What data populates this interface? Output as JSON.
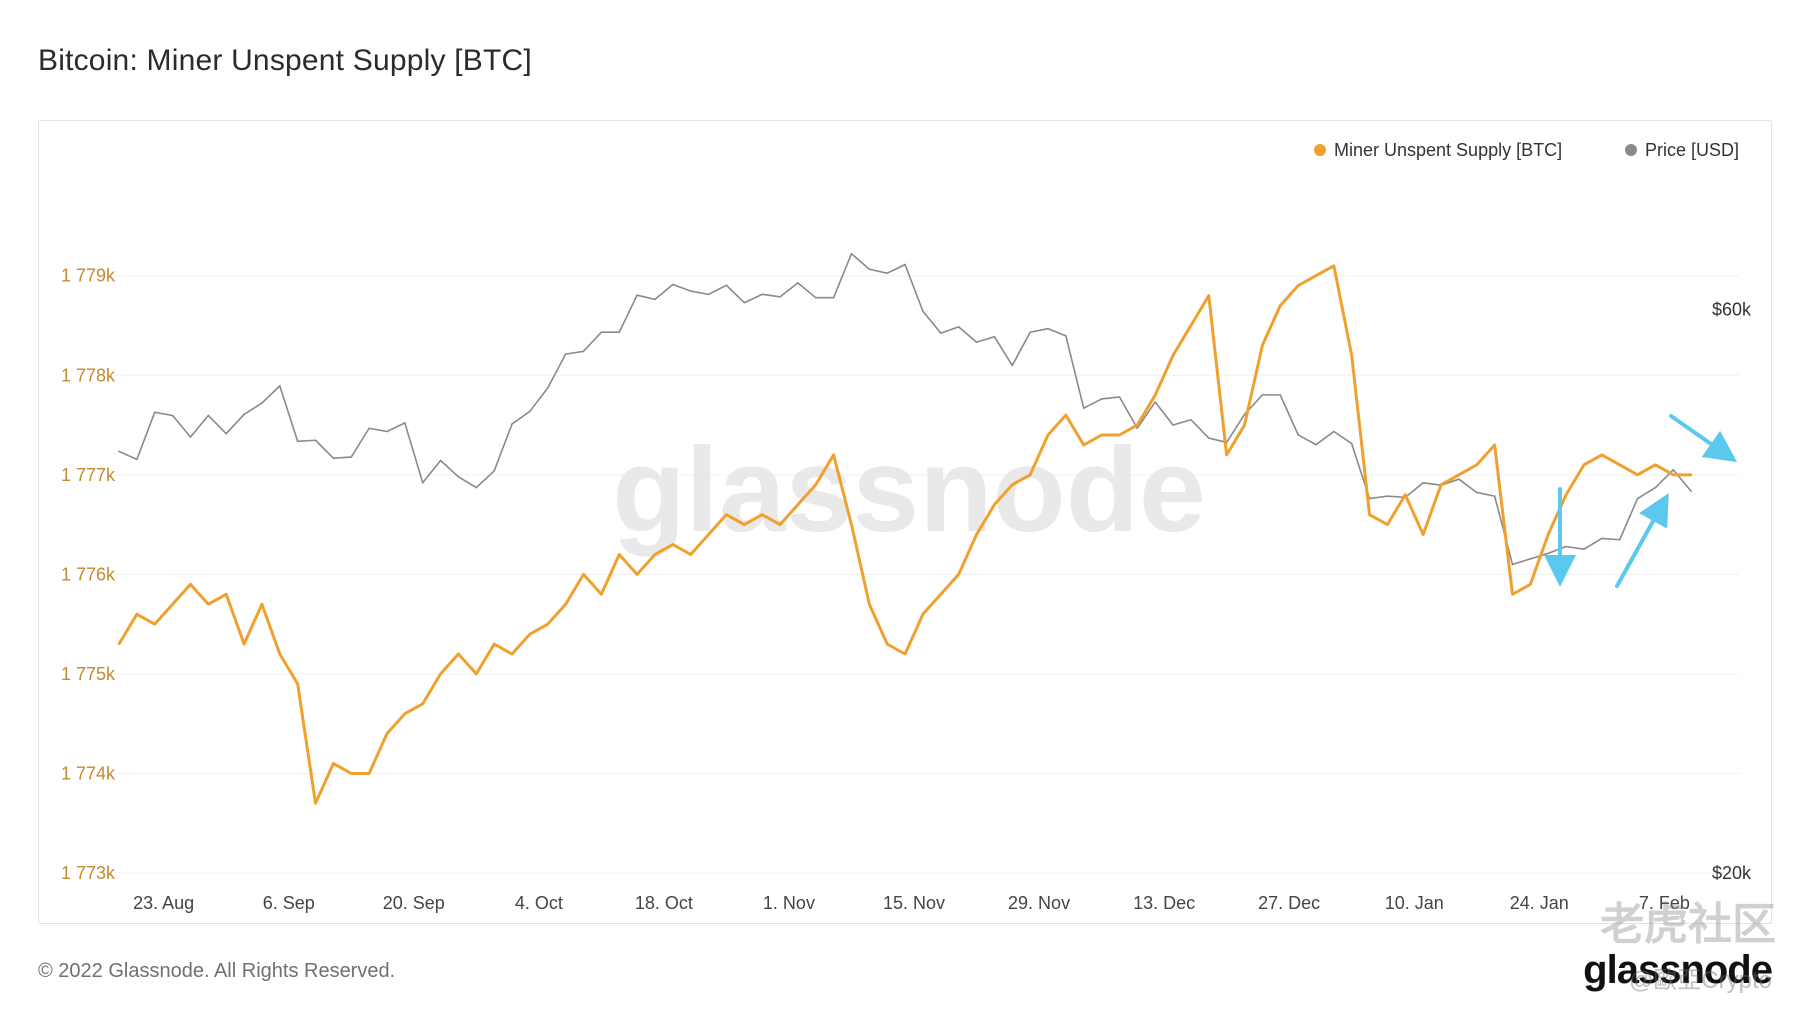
{
  "page": {
    "title": "Bitcoin: Miner Unspent Supply [BTC]",
    "copyright": "© 2022 Glassnode. All Rights Reserved.",
    "brand": "glassnode",
    "watermark_brand": "glassnode",
    "overlay_watermark": "老虎社区",
    "overlay_handle": "@歐亞Crypto"
  },
  "colors": {
    "supply": "#f0a02e",
    "price": "#8a8a8a",
    "annotation_arrow": "#5bc8ee",
    "left_axis_text": "#c48a2c"
  },
  "chart_data": {
    "type": "line",
    "title": "Bitcoin: Miner Unspent Supply [BTC]",
    "legend_position": "top-right",
    "grid": true,
    "x_ticks": [
      "23. Aug",
      "6. Sep",
      "20. Sep",
      "4. Oct",
      "18. Oct",
      "1. Nov",
      "15. Nov",
      "29. Nov",
      "13. Dec",
      "27. Dec",
      "10. Jan",
      "24. Jan",
      "7. Feb"
    ],
    "y_left": {
      "label": "",
      "ticks": [
        "1 773k",
        "1 774k",
        "1 775k",
        "1 776k",
        "1 777k",
        "1 778k",
        "1 779k"
      ],
      "range": [
        1773000,
        1779600
      ]
    },
    "y_right": {
      "label": "",
      "ticks": [
        "$20k",
        "$60k"
      ],
      "scale": "log",
      "range": [
        20000,
        72000
      ]
    },
    "series": [
      {
        "name": "Miner Unspent Supply [BTC]",
        "axis": "left",
        "x": [
          "2021-08-18",
          "2021-08-20",
          "2021-08-22",
          "2021-08-24",
          "2021-08-26",
          "2021-08-28",
          "2021-08-30",
          "2021-09-01",
          "2021-09-03",
          "2021-09-05",
          "2021-09-07",
          "2021-09-09",
          "2021-09-11",
          "2021-09-13",
          "2021-09-15",
          "2021-09-17",
          "2021-09-19",
          "2021-09-21",
          "2021-09-23",
          "2021-09-25",
          "2021-09-27",
          "2021-09-29",
          "2021-10-01",
          "2021-10-03",
          "2021-10-05",
          "2021-10-07",
          "2021-10-09",
          "2021-10-11",
          "2021-10-13",
          "2021-10-15",
          "2021-10-17",
          "2021-10-19",
          "2021-10-21",
          "2021-10-23",
          "2021-10-25",
          "2021-10-27",
          "2021-10-29",
          "2021-10-31",
          "2021-11-02",
          "2021-11-04",
          "2021-11-06",
          "2021-11-08",
          "2021-11-10",
          "2021-11-12",
          "2021-11-14",
          "2021-11-16",
          "2021-11-18",
          "2021-11-20",
          "2021-11-22",
          "2021-11-24",
          "2021-11-26",
          "2021-11-28",
          "2021-11-30",
          "2021-12-02",
          "2021-12-04",
          "2021-12-06",
          "2021-12-08",
          "2021-12-10",
          "2021-12-12",
          "2021-12-14",
          "2021-12-16",
          "2021-12-18",
          "2021-12-20",
          "2021-12-22",
          "2021-12-24",
          "2021-12-26",
          "2021-12-28",
          "2021-12-30",
          "2022-01-01",
          "2022-01-03",
          "2022-01-05",
          "2022-01-07",
          "2022-01-09",
          "2022-01-11",
          "2022-01-13",
          "2022-01-15",
          "2022-01-17",
          "2022-01-19",
          "2022-01-21",
          "2022-01-23",
          "2022-01-25",
          "2022-01-27",
          "2022-01-29",
          "2022-01-31",
          "2022-02-02",
          "2022-02-04",
          "2022-02-06",
          "2022-02-08",
          "2022-02-10"
        ],
        "values": [
          1775300,
          1775600,
          1775500,
          1775700,
          1775900,
          1775700,
          1775800,
          1775300,
          1775700,
          1775200,
          1774900,
          1773700,
          1774100,
          1774000,
          1774000,
          1774400,
          1774600,
          1774700,
          1775000,
          1775200,
          1775000,
          1775300,
          1775200,
          1775400,
          1775500,
          1775700,
          1776000,
          1775800,
          1776200,
          1776000,
          1776200,
          1776300,
          1776200,
          1776400,
          1776600,
          1776500,
          1776600,
          1776500,
          1776700,
          1776900,
          1777200,
          1776500,
          1775700,
          1775300,
          1775200,
          1775600,
          1775800,
          1776000,
          1776400,
          1776700,
          1776900,
          1777000,
          1777400,
          1777600,
          1777300,
          1777400,
          1777400,
          1777500,
          1777800,
          1778200,
          1778500,
          1778800,
          1777200,
          1777500,
          1778300,
          1778700,
          1778900,
          1779000,
          1779100,
          1778200,
          1776600,
          1776500,
          1776800,
          1776400,
          1776900,
          1777000,
          1777100,
          1777300,
          1775800,
          1775900,
          1776400,
          1776800,
          1777100,
          1777200,
          1777100,
          1777000,
          1777100,
          1777000,
          1777000
        ]
      },
      {
        "name": "Price [USD]",
        "axis": "right",
        "x": [
          "2021-08-18",
          "2021-08-20",
          "2021-08-22",
          "2021-08-24",
          "2021-08-26",
          "2021-08-28",
          "2021-08-30",
          "2021-09-01",
          "2021-09-03",
          "2021-09-05",
          "2021-09-07",
          "2021-09-09",
          "2021-09-11",
          "2021-09-13",
          "2021-09-15",
          "2021-09-17",
          "2021-09-19",
          "2021-09-21",
          "2021-09-23",
          "2021-09-25",
          "2021-09-27",
          "2021-09-29",
          "2021-10-01",
          "2021-10-03",
          "2021-10-05",
          "2021-10-07",
          "2021-10-09",
          "2021-10-11",
          "2021-10-13",
          "2021-10-15",
          "2021-10-17",
          "2021-10-19",
          "2021-10-21",
          "2021-10-23",
          "2021-10-25",
          "2021-10-27",
          "2021-10-29",
          "2021-10-31",
          "2021-11-02",
          "2021-11-04",
          "2021-11-06",
          "2021-11-08",
          "2021-11-10",
          "2021-11-12",
          "2021-11-14",
          "2021-11-16",
          "2021-11-18",
          "2021-11-20",
          "2021-11-22",
          "2021-11-24",
          "2021-11-26",
          "2021-11-28",
          "2021-11-30",
          "2021-12-02",
          "2021-12-04",
          "2021-12-06",
          "2021-12-08",
          "2021-12-10",
          "2021-12-12",
          "2021-12-14",
          "2021-12-16",
          "2021-12-18",
          "2021-12-20",
          "2021-12-22",
          "2021-12-24",
          "2021-12-26",
          "2021-12-28",
          "2021-12-30",
          "2022-01-01",
          "2022-01-03",
          "2022-01-05",
          "2022-01-07",
          "2022-01-09",
          "2022-01-11",
          "2022-01-13",
          "2022-01-15",
          "2022-01-17",
          "2022-01-19",
          "2022-01-21",
          "2022-01-23",
          "2022-01-25",
          "2022-01-27",
          "2022-01-29",
          "2022-01-31",
          "2022-02-02",
          "2022-02-04",
          "2022-02-06",
          "2022-02-08",
          "2022-02-10"
        ],
        "values": [
          45500,
          44800,
          49100,
          48800,
          46800,
          48800,
          47100,
          48900,
          50000,
          51700,
          46400,
          46500,
          44900,
          45000,
          47600,
          47300,
          48100,
          42800,
          44700,
          43300,
          42400,
          43800,
          48000,
          49200,
          51500,
          55000,
          55300,
          57400,
          57400,
          61700,
          61200,
          63000,
          62200,
          61800,
          62900,
          60800,
          61800,
          61500,
          63200,
          61400,
          61400,
          66900,
          64900,
          64400,
          65500,
          59800,
          57300,
          58000,
          56300,
          56900,
          53800,
          57400,
          57800,
          57000,
          49500,
          50400,
          50600,
          47600,
          50100,
          47900,
          48400,
          46700,
          46300,
          48900,
          50800,
          50800,
          47000,
          46100,
          47300,
          46200,
          41500,
          41700,
          41600,
          42800,
          42600,
          43100,
          42000,
          41700,
          36500,
          36900,
          37300,
          37800,
          37600,
          38400,
          38300,
          41500,
          42400,
          43900,
          42100
        ]
      }
    ],
    "annotations": [
      {
        "type": "arrow",
        "direction": "down",
        "near": "2022-01-24"
      },
      {
        "type": "arrow",
        "direction": "up",
        "near": "2022-02-05"
      },
      {
        "type": "arrow",
        "direction": "down-right",
        "near": "2022-02-10"
      }
    ]
  }
}
